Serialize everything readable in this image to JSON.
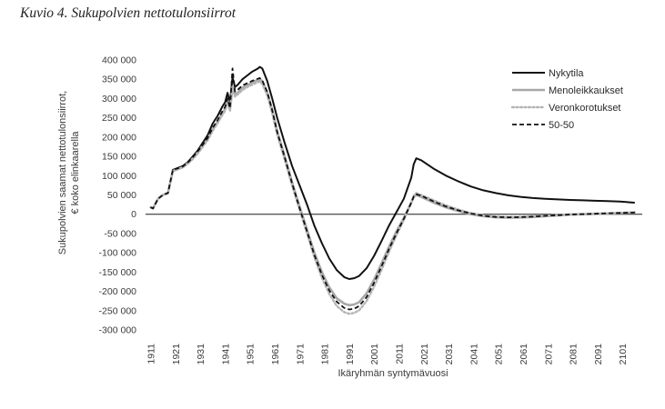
{
  "page": {
    "title": "Kuvio 4. Sukupolvien nettotulonsiirrot"
  },
  "chart_data": {
    "type": "line",
    "title": "Kuvio 4. Sukupolvien nettotulonsiirrot",
    "xlabel": "Ikäryhmän syntymävuosi",
    "ylabel": [
      "Sukupolvien saamat nettotulonsiirrot,",
      "€ koko elinkaarella"
    ],
    "xlim": [
      1909,
      2109
    ],
    "ylim": [
      -300000,
      400000
    ],
    "x_ticks": [
      "1911",
      "1921",
      "1931",
      "1941",
      "1951",
      "1961",
      "1971",
      "1981",
      "1991",
      "2001",
      "2011",
      "2021",
      "2031",
      "2041",
      "2051",
      "2061",
      "2071",
      "2081",
      "2091",
      "2101"
    ],
    "y_ticks": [
      {
        "value": 400000,
        "label": "400 000"
      },
      {
        "value": 350000,
        "label": "350 000"
      },
      {
        "value": 300000,
        "label": "300 000"
      },
      {
        "value": 250000,
        "label": "250 000"
      },
      {
        "value": 200000,
        "label": "200 000"
      },
      {
        "value": 150000,
        "label": "150 000"
      },
      {
        "value": 100000,
        "label": "100 000"
      },
      {
        "value": 50000,
        "label": "50 000"
      },
      {
        "value": 0,
        "label": "0"
      },
      {
        "value": -50000,
        "label": "-50 000"
      },
      {
        "value": -100000,
        "label": "-100 000"
      },
      {
        "value": -150000,
        "label": "-150 000"
      },
      {
        "value": -200000,
        "label": "-200 000"
      },
      {
        "value": -250000,
        "label": "-250 000"
      },
      {
        "value": -300000,
        "label": "-300 000"
      }
    ],
    "grid": false,
    "legend_position": "top-right",
    "series": [
      {
        "name": "Nykytila",
        "color": "#111111",
        "dash": "solid",
        "x": [
          1911,
          1912,
          1914,
          1916,
          1918,
          1920,
          1922,
          1924,
          1926,
          1928,
          1930,
          1932,
          1934,
          1936,
          1938,
          1940,
          1941,
          1942,
          1943,
          1944,
          1945,
          1946,
          1948,
          1950,
          1952,
          1954,
          1955,
          1956,
          1958,
          1960,
          1962,
          1965,
          1968,
          1971,
          1974,
          1977,
          1980,
          1983,
          1986,
          1989,
          1991,
          1993,
          1995,
          1998,
          2001,
          2004,
          2007,
          2010,
          2013,
          2016,
          2017,
          2018,
          2020,
          2025,
          2030,
          2035,
          2040,
          2045,
          2050,
          2055,
          2060,
          2065,
          2070,
          2075,
          2080,
          2085,
          2090,
          2095,
          2100,
          2102,
          2104,
          2106
        ],
        "y": [
          18000,
          15000,
          40000,
          50000,
          55000,
          115000,
          120000,
          125000,
          135000,
          150000,
          165000,
          185000,
          205000,
          235000,
          255000,
          280000,
          290000,
          315000,
          290000,
          355000,
          330000,
          335000,
          350000,
          360000,
          370000,
          377000,
          382000,
          378000,
          345000,
          300000,
          250000,
          185000,
          125000,
          75000,
          25000,
          -30000,
          -75000,
          -115000,
          -145000,
          -163000,
          -168000,
          -166000,
          -160000,
          -140000,
          -108000,
          -70000,
          -30000,
          5000,
          40000,
          95000,
          130000,
          145000,
          140000,
          118000,
          100000,
          85000,
          72000,
          62000,
          55000,
          49000,
          45000,
          42000,
          40000,
          38500,
          37000,
          36000,
          35000,
          34000,
          33000,
          32000,
          31000,
          30000
        ]
      },
      {
        "name": "Menoleikkaukset",
        "color": "#a8a8a8",
        "dash": "solid",
        "x": [
          1911,
          1912,
          1914,
          1916,
          1918,
          1920,
          1922,
          1924,
          1926,
          1928,
          1930,
          1932,
          1934,
          1936,
          1938,
          1940,
          1941,
          1942,
          1943,
          1944,
          1945,
          1946,
          1948,
          1950,
          1952,
          1954,
          1955,
          1956,
          1958,
          1960,
          1962,
          1965,
          1968,
          1971,
          1974,
          1977,
          1980,
          1983,
          1986,
          1989,
          1991,
          1993,
          1995,
          1998,
          2001,
          2004,
          2007,
          2010,
          2013,
          2016,
          2017,
          2018,
          2020,
          2025,
          2030,
          2035,
          2040,
          2045,
          2050,
          2055,
          2060,
          2065,
          2070,
          2075,
          2080,
          2085,
          2090,
          2095,
          2100,
          2102,
          2104,
          2106
        ],
        "y": [
          18000,
          15000,
          40000,
          50000,
          55000,
          112000,
          117000,
          122000,
          132000,
          145000,
          160000,
          178000,
          195000,
          220000,
          240000,
          262000,
          272000,
          295000,
          272000,
          330000,
          310000,
          315000,
          328000,
          335000,
          342000,
          348000,
          350000,
          345000,
          315000,
          270000,
          215000,
          150000,
          82000,
          20000,
          -40000,
          -100000,
          -150000,
          -190000,
          -218000,
          -232000,
          -236000,
          -234000,
          -228000,
          -205000,
          -170000,
          -128000,
          -85000,
          -45000,
          -10000,
          30000,
          45000,
          50000,
          45000,
          30000,
          18000,
          8000,
          0,
          -5000,
          -8000,
          -9000,
          -8500,
          -7000,
          -5000,
          -3000,
          -1000,
          0,
          1000,
          2000,
          3000,
          3500,
          4000,
          4000
        ]
      },
      {
        "name": "Veronkorotukset",
        "color": "#b5b5b5",
        "dash": "dotted",
        "x": [
          1911,
          1912,
          1914,
          1916,
          1918,
          1920,
          1922,
          1924,
          1926,
          1928,
          1930,
          1932,
          1934,
          1936,
          1938,
          1940,
          1941,
          1942,
          1943,
          1944,
          1945,
          1946,
          1948,
          1950,
          1952,
          1954,
          1955,
          1956,
          1958,
          1960,
          1962,
          1965,
          1968,
          1971,
          1974,
          1977,
          1980,
          1983,
          1986,
          1989,
          1991,
          1993,
          1995,
          1998,
          2001,
          2004,
          2007,
          2010,
          2013,
          2016,
          2017,
          2018,
          2020,
          2025,
          2030,
          2035,
          2040,
          2045,
          2050,
          2055,
          2060,
          2065,
          2070,
          2075,
          2080,
          2085,
          2090,
          2095,
          2100,
          2102,
          2104,
          2106
        ],
        "y": [
          18000,
          15000,
          40000,
          50000,
          55000,
          112000,
          117000,
          122000,
          131000,
          143000,
          157000,
          175000,
          192000,
          216000,
          236000,
          258000,
          268000,
          290000,
          268000,
          325000,
          305000,
          310000,
          322000,
          330000,
          336000,
          342000,
          344000,
          338000,
          308000,
          262000,
          207000,
          142000,
          74000,
          12000,
          -50000,
          -112000,
          -165000,
          -207000,
          -238000,
          -254000,
          -258000,
          -256000,
          -249000,
          -225000,
          -188000,
          -145000,
          -98000,
          -55000,
          -15000,
          30000,
          48000,
          55000,
          50000,
          36000,
          23000,
          12000,
          3000,
          -3000,
          -6000,
          -7000,
          -6500,
          -5000,
          -3500,
          -2000,
          -500,
          500,
          1500,
          2500,
          3500,
          4000,
          4500,
          5000
        ]
      },
      {
        "name": "50-50",
        "color": "#111111",
        "dash": "dashed",
        "x": [
          1911,
          1912,
          1914,
          1916,
          1918,
          1920,
          1922,
          1924,
          1926,
          1928,
          1930,
          1932,
          1934,
          1936,
          1938,
          1940,
          1941,
          1942,
          1943,
          1944,
          1945,
          1946,
          1948,
          1950,
          1952,
          1954,
          1955,
          1956,
          1958,
          1960,
          1962,
          1965,
          1968,
          1971,
          1974,
          1977,
          1980,
          1983,
          1986,
          1989,
          1991,
          1993,
          1995,
          1998,
          2001,
          2004,
          2007,
          2010,
          2013,
          2016,
          2017,
          2018,
          2020,
          2025,
          2030,
          2035,
          2040,
          2045,
          2050,
          2055,
          2060,
          2065,
          2070,
          2075,
          2080,
          2085,
          2090,
          2095,
          2100,
          2102,
          2104,
          2106
        ],
        "y": [
          18000,
          15000,
          40000,
          50000,
          55000,
          115000,
          119000,
          124000,
          134000,
          148000,
          163000,
          180000,
          198000,
          224000,
          244000,
          268000,
          278000,
          300000,
          275000,
          378000,
          318000,
          322000,
          334000,
          340000,
          346000,
          351000,
          353000,
          347000,
          317000,
          270000,
          213000,
          148000,
          80000,
          16000,
          -45000,
          -106000,
          -157000,
          -198000,
          -227000,
          -243000,
          -247000,
          -245000,
          -238000,
          -215000,
          -178000,
          -136000,
          -91000,
          -50000,
          -12000,
          30000,
          46000,
          52000,
          48000,
          33000,
          20000,
          10000,
          2000,
          -4000,
          -7000,
          -8000,
          -7500,
          -6000,
          -4000,
          -2500,
          -700,
          300,
          1300,
          2300,
          3300,
          3800,
          4200,
          4500
        ]
      }
    ]
  }
}
